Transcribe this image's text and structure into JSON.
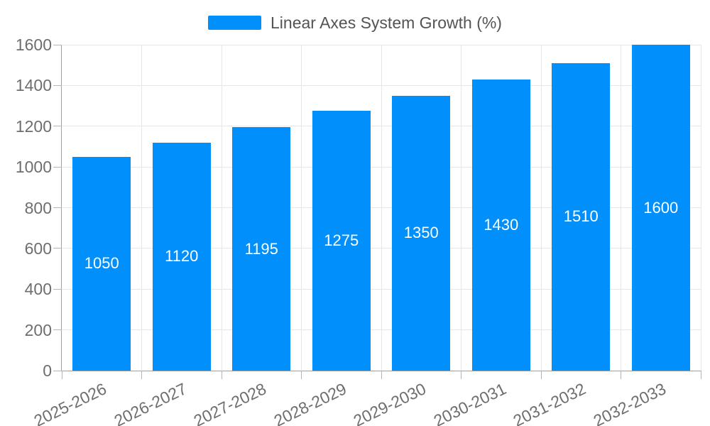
{
  "legend": {
    "position": "top",
    "items": [
      {
        "label": "Linear Axes System Growth (%)",
        "color": "#008FFB"
      }
    ]
  },
  "chart_data": {
    "type": "bar",
    "title": "",
    "xlabel": "",
    "ylabel": "",
    "categories": [
      "2025-2026",
      "2026-2027",
      "2027-2028",
      "2028-2029",
      "2029-2030",
      "2030-2031",
      "2031-2032",
      "2032-2033"
    ],
    "series": [
      {
        "name": "Linear Axes System Growth (%)",
        "color": "#008FFB",
        "values": [
          1050,
          1120,
          1195,
          1275,
          1350,
          1430,
          1510,
          1600
        ]
      }
    ],
    "data_labels": [
      "1050",
      "1120",
      "1195",
      "1275",
      "1350",
      "1430",
      "1510",
      "1600"
    ],
    "ylim": [
      0,
      1600
    ],
    "yticks": [
      0,
      200,
      400,
      600,
      800,
      1000,
      1200,
      1400,
      1600
    ],
    "ytick_labels": [
      "0",
      "200",
      "400",
      "600",
      "800",
      "1000",
      "1200",
      "1400",
      "1600"
    ],
    "grid": true,
    "legend_position": "top",
    "x_label_rotation_deg": -26,
    "colors": {
      "bar": "#008FFB",
      "grid_line": "#e7e7e7",
      "axis_line": "#a0a0a0",
      "tick_mark": "#b5b5b5",
      "tick_label": "#6e6e6e",
      "legend_text": "#545454",
      "value_label": "#ffffff",
      "background": "#ffffff"
    }
  }
}
